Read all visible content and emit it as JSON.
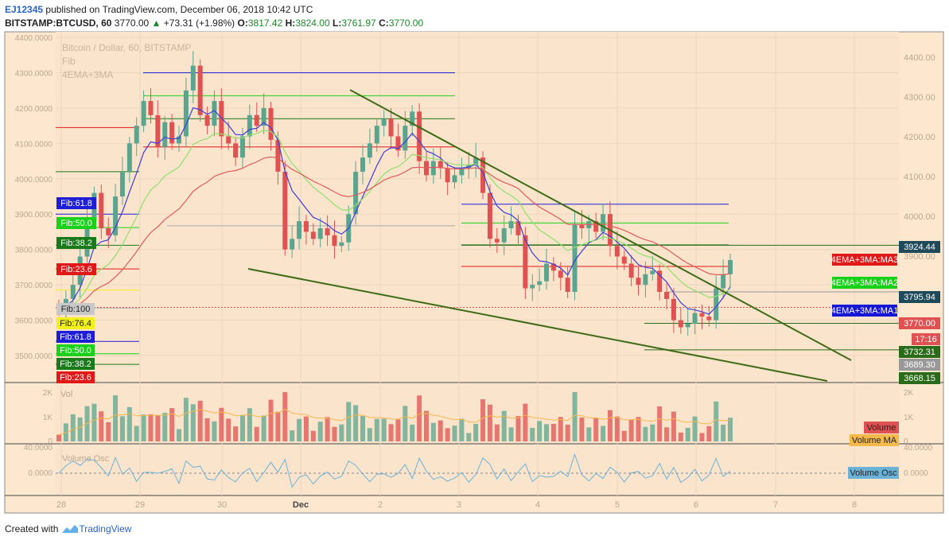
{
  "header": {
    "user": "EJ12345",
    "published": "published on TradingView.com, December 06, 2018 10:42 UTC",
    "symbol": "BITSTAMP:BTCUSD, 60",
    "last": "3770.00",
    "change": "+73.31 (+1.98%)",
    "o_label": "O:",
    "o": "3817.42",
    "h_label": "H:",
    "h": "3824.00",
    "l_label": "L:",
    "l": "3761.97",
    "c_label": "C:",
    "c": "3770.00"
  },
  "footer": {
    "created": "Created with",
    "brand": "TradingView"
  },
  "colors": {
    "background": "#fbe4cc",
    "candle_up": "#5aa58f",
    "candle_down": "#e05252",
    "ema_blue": "#3d3dd9",
    "ema_green": "#8fe06a",
    "ema_red": "#e05a5a",
    "trendline": "#3e6b16",
    "volume_ma": "#f5b84a",
    "volume_osc": "#6ab2d8"
  },
  "chart_data": {
    "type": "candlestick",
    "overlay_legend": [
      "Bitcoin / Dollar, 60, BITSTAMP",
      "Fib",
      "4EMA+3MA"
    ],
    "x_ticks": [
      "28",
      "29",
      "30",
      "Dec",
      "2",
      "3",
      "4",
      "5",
      "6",
      "7",
      "8"
    ],
    "left_axis": {
      "ticks": [
        "4400.0000",
        "4300.0000",
        "4200.0000",
        "4100.0000",
        "4000.0000",
        "3900.0000",
        "3800.0000",
        "3700.0000",
        "3600.0000",
        "3500.0000"
      ]
    },
    "right_axis": {
      "ticks": [
        "4400.00",
        "4300.00",
        "4200.00",
        "4100.00",
        "4000.00",
        "3900.00"
      ]
    },
    "price_markers": [
      {
        "label": "3924.44",
        "color": "#1f4a5a"
      },
      {
        "label": "4EMA+3MA:MA3",
        "color": "#e01818"
      },
      {
        "label": "4EMA+3MA:MA2",
        "color": "#17d117"
      },
      {
        "label": "3795.94",
        "color": "#1f4a5a"
      },
      {
        "label": "4EMA+3MA:MA1",
        "color": "#1616d9"
      },
      {
        "label": "3770.00",
        "color": "#e05252"
      },
      {
        "label": "17:16",
        "color": "#e05252"
      },
      {
        "label": "3732.31",
        "color": "#2a6b1a"
      },
      {
        "label": "3689.30",
        "color": "#999999"
      },
      {
        "label": "3668.15",
        "color": "#2a6b1a"
      }
    ],
    "fib_labels_upper": [
      {
        "label": "Fib:61.8",
        "color": "#1e1ed8"
      },
      {
        "label": "Fib:50.0",
        "color": "#19d119"
      },
      {
        "label": "Fib:38.2",
        "color": "#197a19"
      },
      {
        "label": "Fib:23.6",
        "color": "#e01818"
      }
    ],
    "fib_labels_lower": [
      {
        "label": "Fib:100",
        "color": "#c8c8c8"
      },
      {
        "label": "Fib:76.4",
        "color": "#f2f21a"
      },
      {
        "label": "Fib:61.8",
        "color": "#1e1ed8"
      },
      {
        "label": "Fib:50.0",
        "color": "#19d119"
      },
      {
        "label": "Fib:38.2",
        "color": "#197a19"
      },
      {
        "label": "Fib:23.6",
        "color": "#e01818"
      }
    ],
    "volume_pane": {
      "label": "Vol",
      "ticks": [
        "2K",
        "1K",
        "0"
      ],
      "right_ticks": [
        "2K",
        "1K",
        "0"
      ],
      "markers": [
        {
          "label": "Volume",
          "color": "#e05252"
        },
        {
          "label": "Volume MA",
          "color": "#f5b84a"
        }
      ]
    },
    "osc_pane": {
      "label": "Volume Osc",
      "ticks": [
        "40.0000",
        "0.0000"
      ],
      "right_ticks": [
        "40.0000",
        "0.0000"
      ],
      "marker": {
        "label": "Volume Osc",
        "color": "#6ab2d8"
      }
    },
    "ohlc_close_approx": [
      3630,
      3660,
      3700,
      3780,
      3880,
      3960,
      3860,
      3840,
      3950,
      4020,
      4100,
      4150,
      4220,
      4180,
      4090,
      4160,
      4100,
      4120,
      4250,
      4320,
      4180,
      4150,
      4220,
      4120,
      4100,
      4060,
      4120,
      4180,
      4150,
      4200,
      4110,
      4020,
      3800,
      3830,
      3880,
      3850,
      3830,
      3860,
      3840,
      3810,
      3820,
      3900,
      4020,
      4060,
      4100,
      4150,
      4170,
      4120,
      4080,
      4150,
      4190,
      4050,
      4010,
      4050,
      4030,
      3990,
      4010,
      4030,
      4040,
      4060,
      3960,
      3830,
      3820,
      3860,
      3880,
      3840,
      3690,
      3700,
      3710,
      3760,
      3740,
      3720,
      3680,
      3870,
      3860,
      3880,
      3850,
      3900,
      3810,
      3780,
      3760,
      3720,
      3700,
      3730,
      3740,
      3680,
      3660,
      3600,
      3580,
      3590,
      3620,
      3610,
      3600,
      3690,
      3730,
      3770
    ]
  }
}
